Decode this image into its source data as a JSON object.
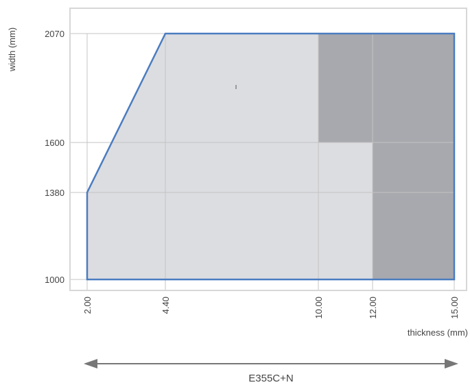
{
  "chart_data": {
    "type": "area",
    "xlabel": "thickness (mm)",
    "ylabel": "width (mm)",
    "x_ticks": [
      {
        "value": 2,
        "label": "2.00"
      },
      {
        "value": 4.4,
        "label": "4.40"
      },
      {
        "value": 10,
        "label": "10.00"
      },
      {
        "value": 12,
        "label": "12.00"
      },
      {
        "value": 15,
        "label": "15.00"
      }
    ],
    "y_ticks": [
      {
        "value": 1000,
        "label": "1000"
      },
      {
        "value": 1380,
        "label": "1380"
      },
      {
        "value": 1600,
        "label": "1600"
      },
      {
        "value": 2070,
        "label": "2070"
      }
    ],
    "xlim": [
      2,
      15
    ],
    "ylim": [
      1000,
      2070
    ],
    "grid": true,
    "regions": [
      {
        "id": "available-range",
        "color": "#dcdde0",
        "points": [
          [
            2,
            1000
          ],
          [
            2,
            1380
          ],
          [
            4.4,
            2070
          ],
          [
            15,
            2070
          ],
          [
            15,
            1000
          ]
        ]
      },
      {
        "id": "restricted-range",
        "color": "#a8a9ae",
        "points": [
          [
            10,
            2070
          ],
          [
            15,
            2070
          ],
          [
            15,
            1000
          ],
          [
            12,
            1000
          ],
          [
            12,
            1600
          ],
          [
            10,
            1600
          ]
        ]
      }
    ],
    "outline_color": "#4a7cc0",
    "outline": [
      [
        2,
        1000
      ],
      [
        2,
        1380
      ],
      [
        4.4,
        2070
      ],
      [
        15,
        2070
      ],
      [
        15,
        1000
      ]
    ],
    "range_arrow": {
      "label": "E355C+N",
      "color": "#777777"
    }
  }
}
